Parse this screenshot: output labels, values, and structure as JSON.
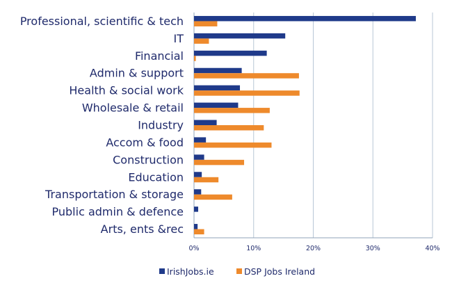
{
  "chart_data": {
    "type": "bar",
    "orientation": "horizontal",
    "title": "",
    "xlabel": "",
    "ylabel": "",
    "categories": [
      "Professional, scientific & tech",
      "IT",
      "Financial",
      "Admin & support",
      "Health & social work",
      "Wholesale & retail",
      "Industry",
      "Accom & food",
      "Construction",
      "Education",
      "Transportation & storage",
      "Public admin & defence",
      "Arts, ents &rec"
    ],
    "series": [
      {
        "name": "IrishJobs.ie",
        "color": "#1f3a8a",
        "values": [
          37.2,
          15.3,
          12.2,
          8.0,
          7.7,
          7.4,
          3.8,
          2.0,
          1.7,
          1.3,
          1.2,
          0.7,
          0.6
        ]
      },
      {
        "name": "DSP Jobs Ireland",
        "color": "#ee8a2c",
        "values": [
          3.9,
          2.5,
          0.3,
          17.6,
          17.7,
          12.7,
          11.7,
          13.0,
          8.4,
          4.1,
          6.4,
          0.0,
          1.7
        ]
      }
    ],
    "xlim": [
      0,
      40
    ],
    "xticks": [
      "0%",
      "10%",
      "20%",
      "30%",
      "40%"
    ],
    "grid": true,
    "legend": "bottom-center"
  }
}
